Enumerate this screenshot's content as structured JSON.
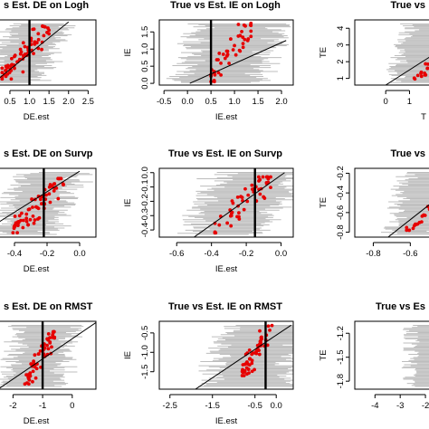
{
  "figure": {
    "panels": [
      {
        "id": "de-logh",
        "title": "s Est. DE on Logh",
        "xlabel": "DE.est",
        "ylabel": "",
        "xticks": [
          {
            "v": 0.5,
            "t": "0.5"
          },
          {
            "v": 1.0,
            "t": "1.0"
          },
          {
            "v": 1.5,
            "t": "1.5"
          },
          {
            "v": 2.0,
            "t": "2.0"
          },
          {
            "v": 2.5,
            "t": "2.5"
          }
        ],
        "yticks": []
      },
      {
        "id": "ie-logh",
        "title": "True vs Est. IE on Logh",
        "xlabel": "IE.est",
        "ylabel": "IE",
        "xticks": [
          {
            "v": -0.5,
            "t": "-0.5"
          },
          {
            "v": 0.0,
            "t": "0.0"
          },
          {
            "v": 0.5,
            "t": "0.5"
          },
          {
            "v": 1.0,
            "t": "1.0"
          },
          {
            "v": 1.5,
            "t": "1.5"
          },
          {
            "v": 2.0,
            "t": "2.0"
          }
        ],
        "yticks": [
          {
            "v": 0.0,
            "t": "0.0"
          },
          {
            "v": 0.5,
            "t": "0.5"
          },
          {
            "v": 1.0,
            "t": "1.0"
          },
          {
            "v": 1.5,
            "t": "1.5"
          }
        ]
      },
      {
        "id": "te-logh",
        "title": "True vs",
        "xlabel": "T",
        "ylabel": "TE",
        "xticks": [
          {
            "v": 0,
            "t": "0"
          },
          {
            "v": 1,
            "t": "1"
          }
        ],
        "yticks": [
          {
            "v": 1,
            "t": "1"
          },
          {
            "v": 2,
            "t": "2"
          },
          {
            "v": 3,
            "t": "3"
          },
          {
            "v": 4,
            "t": "4"
          }
        ]
      },
      {
        "id": "de-survp",
        "title": "s Est. DE on Survp",
        "xlabel": "DE.est",
        "ylabel": "",
        "xticks": [
          {
            "v": -0.4,
            "t": "-0.4"
          },
          {
            "v": -0.2,
            "t": "-0.2"
          },
          {
            "v": 0.0,
            "t": "0.0"
          }
        ],
        "yticks": []
      },
      {
        "id": "ie-survp",
        "title": "True vs Est. IE on Survp",
        "xlabel": "IE.est",
        "ylabel": "IE",
        "xticks": [
          {
            "v": -0.6,
            "t": "-0.6"
          },
          {
            "v": -0.4,
            "t": "-0.4"
          },
          {
            "v": -0.2,
            "t": "-0.2"
          },
          {
            "v": 0.0,
            "t": "0.0"
          }
        ],
        "yticks": [
          {
            "v": -0.4,
            "t": "-0.4"
          },
          {
            "v": -0.3,
            "t": "-0.3"
          },
          {
            "v": -0.2,
            "t": "-0.2"
          },
          {
            "v": -0.1,
            "t": "-0.1"
          },
          {
            "v": 0.0,
            "t": "0.0"
          }
        ]
      },
      {
        "id": "te-survp",
        "title": "True vs",
        "xlabel": "",
        "ylabel": "TE",
        "xticks": [
          {
            "v": -0.8,
            "t": "-0.8"
          },
          {
            "v": -0.6,
            "t": "-0.6"
          }
        ],
        "yticks": [
          {
            "v": -0.8,
            "t": "-0.8"
          },
          {
            "v": -0.6,
            "t": "-0.6"
          },
          {
            "v": -0.4,
            "t": "-0.4"
          },
          {
            "v": -0.2,
            "t": "-0.2"
          }
        ]
      },
      {
        "id": "de-rmst",
        "title": "s Est. DE on RMST",
        "xlabel": "DE.est",
        "ylabel": "",
        "xticks": [
          {
            "v": -2,
            "t": "-2"
          },
          {
            "v": -1,
            "t": "-1"
          },
          {
            "v": 0,
            "t": "0"
          }
        ],
        "yticks": []
      },
      {
        "id": "ie-rmst",
        "title": "True vs Est. IE on RMST",
        "xlabel": "IE.est",
        "ylabel": "IE",
        "xticks": [
          {
            "v": -2.5,
            "t": "-2.5"
          },
          {
            "v": -1.5,
            "t": "-1.5"
          },
          {
            "v": -0.5,
            "t": "-0.5"
          },
          {
            "v": 0.0,
            "t": "0.0"
          }
        ],
        "yticks": [
          {
            "v": -1.5,
            "t": "-1.5"
          },
          {
            "v": -1.0,
            "t": "-1.0"
          },
          {
            "v": -0.5,
            "t": "-0.5"
          }
        ]
      },
      {
        "id": "te-rmst",
        "title": "True vs Es",
        "xlabel": "",
        "ylabel": "TE",
        "xticks": [
          {
            "v": -4,
            "t": "-4"
          },
          {
            "v": -3,
            "t": "-3"
          },
          {
            "v": -2,
            "t": "-2"
          }
        ],
        "yticks": [
          {
            "v": -1.8,
            "t": "-1.8"
          },
          {
            "v": -1.5,
            "t": "-1.5"
          },
          {
            "v": -1.2,
            "t": "-1.2"
          }
        ]
      }
    ]
  },
  "chart_data": [
    {
      "type": "scatter",
      "title": "s Est. DE on Logh",
      "xlabel": "DE.est",
      "ylabel": "",
      "xlim": [
        0.2,
        2.7
      ],
      "ylim": [
        0.0,
        1.6
      ],
      "vertical_line_x": 1.0,
      "reference_line": {
        "x": [
          0.2,
          2.0
        ],
        "y": [
          0.15,
          1.55
        ]
      },
      "interval_color": "#bdbdbd",
      "point_color": "#e60000",
      "seed": 11,
      "series": [
        {
          "x_range": [
            0.3,
            1.5
          ],
          "y_range": [
            0.15,
            1.45
          ],
          "n_points": 70
        }
      ]
    },
    {
      "type": "scatter",
      "title": "True vs Est. IE on Logh",
      "xlabel": "IE.est",
      "ylabel": "IE",
      "xlim": [
        -0.6,
        2.25
      ],
      "ylim": [
        -0.05,
        1.85
      ],
      "vertical_line_x": 0.5,
      "reference_line": {
        "x": [
          0.05,
          2.1
        ],
        "y": [
          0.0,
          1.25
        ]
      },
      "interval_color": "#bdbdbd",
      "point_color": "#e60000",
      "seed": 23,
      "series": [
        {
          "x_range": [
            0.5,
            1.35
          ],
          "y_range": [
            0.05,
            1.75
          ],
          "n_points": 45
        }
      ]
    },
    {
      "type": "scatter",
      "title": "True vs",
      "xlabel": "T",
      "ylabel": "TE",
      "xlim": [
        -1.3,
        2.2
      ],
      "ylim": [
        0.6,
        4.5
      ],
      "vertical_line_x": null,
      "reference_line": {
        "x": [
          0.0,
          2.2
        ],
        "y": [
          0.6,
          2.6
        ]
      },
      "interval_color": "#bdbdbd",
      "point_color": "#e60000",
      "seed": 37,
      "series": [
        {
          "x_range": [
            1.2,
            2.2
          ],
          "y_range": [
            0.8,
            2.2
          ],
          "n_points": 20
        }
      ]
    },
    {
      "type": "scatter",
      "title": "s Est. DE on Survp",
      "xlabel": "DE.est",
      "ylabel": "",
      "xlim": [
        -0.5,
        0.1
      ],
      "ylim": [
        -0.45,
        0.02
      ],
      "vertical_line_x": -0.22,
      "reference_line": {
        "x": [
          -0.5,
          0.0
        ],
        "y": [
          -0.35,
          0.0
        ]
      },
      "interval_color": "#bdbdbd",
      "point_color": "#e60000",
      "seed": 41,
      "series": [
        {
          "x_range": [
            -0.42,
            -0.1
          ],
          "y_range": [
            -0.42,
            -0.05
          ],
          "n_points": 65
        }
      ]
    },
    {
      "type": "scatter",
      "title": "True vs Est. IE on Survp",
      "xlabel": "IE.est",
      "ylabel": "IE",
      "xlim": [
        -0.7,
        0.07
      ],
      "ylim": [
        -0.45,
        0.03
      ],
      "vertical_line_x": -0.15,
      "reference_line": {
        "x": [
          -0.5,
          0.02
        ],
        "y": [
          -0.45,
          0.0
        ]
      },
      "interval_color": "#bdbdbd",
      "point_color": "#e60000",
      "seed": 53,
      "series": [
        {
          "x_range": [
            -0.38,
            -0.06
          ],
          "y_range": [
            -0.42,
            -0.03
          ],
          "n_points": 55
        }
      ]
    },
    {
      "type": "scatter",
      "title": "True vs",
      "xlabel": "",
      "ylabel": "TE",
      "xlim": [
        -0.9,
        -0.45
      ],
      "ylim": [
        -0.85,
        -0.15
      ],
      "vertical_line_x": null,
      "reference_line": {
        "x": [
          -0.72,
          -0.45
        ],
        "y": [
          -0.85,
          -0.45
        ]
      },
      "interval_color": "#bdbdbd",
      "point_color": "#e60000",
      "seed": 67,
      "series": [
        {
          "x_range": [
            -0.62,
            -0.45
          ],
          "y_range": [
            -0.78,
            -0.5
          ],
          "n_points": 25
        }
      ]
    },
    {
      "type": "scatter",
      "title": "s Est. DE on RMST",
      "xlabel": "DE.est",
      "ylabel": "",
      "xlim": [
        -2.5,
        0.8
      ],
      "ylim": [
        -2.4,
        0.2
      ],
      "vertical_line_x": -1.0,
      "reference_line": {
        "x": [
          -2.5,
          0.8
        ],
        "y": [
          -2.4,
          0.15
        ]
      },
      "interval_color": "#bdbdbd",
      "point_color": "#e60000",
      "seed": 71,
      "series": [
        {
          "x_range": [
            -1.6,
            -0.6
          ],
          "y_range": [
            -2.2,
            -0.2
          ],
          "n_points": 55
        }
      ]
    },
    {
      "type": "scatter",
      "title": "True vs Est. IE on RMST",
      "xlabel": "IE.est",
      "ylabel": "IE",
      "xlim": [
        -2.75,
        0.4
      ],
      "ylim": [
        -1.95,
        -0.2
      ],
      "vertical_line_x": -0.25,
      "reference_line": {
        "x": [
          -1.9,
          0.35
        ],
        "y": [
          -1.95,
          -0.3
        ]
      },
      "interval_color": "#bdbdbd",
      "point_color": "#e60000",
      "seed": 83,
      "series": [
        {
          "x_range": [
            -0.8,
            -0.1
          ],
          "y_range": [
            -1.6,
            -0.3
          ],
          "n_points": 55
        }
      ]
    },
    {
      "type": "scatter",
      "title": "True vs Es",
      "xlabel": "",
      "ylabel": "TE",
      "xlim": [
        -4.8,
        -1.5
      ],
      "ylim": [
        -1.9,
        -1.05
      ],
      "vertical_line_x": null,
      "reference_line": null,
      "interval_color": "#bdbdbd",
      "point_color": "#e60000",
      "seed": 97,
      "series": [
        {
          "x_range": [
            -1.8,
            -1.55
          ],
          "y_range": [
            -1.6,
            -1.4
          ],
          "n_points": 3
        }
      ]
    }
  ]
}
